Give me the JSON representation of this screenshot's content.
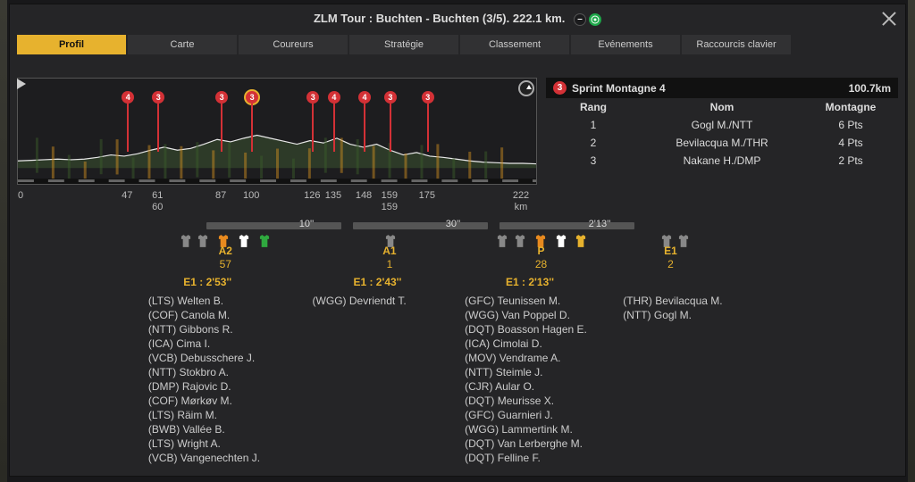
{
  "title": "ZLM Tour : Buchten - Buchten (3/5). 222.1 km.",
  "tabs": [
    "Profil",
    "Carte",
    "Coureurs",
    "Stratégie",
    "Classement",
    "Evénements",
    "Raccourcis clavier"
  ],
  "activeTab": 0,
  "colors": {
    "accent": "#e7b22e",
    "red": "#d33136",
    "green": "#1ea84a",
    "panel": "#252527",
    "seg": "#555555"
  },
  "profile": {
    "lengthKm": 222,
    "xStartLabel": "0",
    "xEndLabel": "222 km",
    "xTicks": [
      {
        "km": 47,
        "labels": [
          "47"
        ]
      },
      {
        "km": 60,
        "labels": [
          "61",
          "60"
        ]
      },
      {
        "km": 87,
        "labels": [
          "87"
        ]
      },
      {
        "km": 100,
        "labels": [
          "100"
        ]
      },
      {
        "km": 126,
        "labels": [
          "126"
        ]
      },
      {
        "km": 135,
        "labels": [
          "135"
        ]
      },
      {
        "km": 148,
        "labels": [
          "148"
        ]
      },
      {
        "km": 159,
        "labels": [
          "159",
          "159"
        ]
      },
      {
        "km": 175,
        "labels": [
          "175"
        ]
      }
    ],
    "markers": [
      {
        "km": 47,
        "label": "4",
        "type": "red"
      },
      {
        "km": 60,
        "label": "3",
        "type": "red"
      },
      {
        "km": 87,
        "label": "3",
        "type": "red"
      },
      {
        "km": 100,
        "label": "3",
        "type": "red",
        "highlight": true
      },
      {
        "km": 126,
        "label": "3",
        "type": "red"
      },
      {
        "km": 135,
        "label": "4",
        "type": "red"
      },
      {
        "km": 148,
        "label": "4",
        "type": "red"
      },
      {
        "km": 159,
        "label": "3",
        "type": "red"
      },
      {
        "km": 175,
        "label": "3",
        "type": "red"
      }
    ],
    "elevation": [
      0.12,
      0.13,
      0.14,
      0.15,
      0.14,
      0.15,
      0.18,
      0.22,
      0.2,
      0.24,
      0.3,
      0.35,
      0.3,
      0.33,
      0.4,
      0.48,
      0.44,
      0.5,
      0.55,
      0.5,
      0.45,
      0.4,
      0.46,
      0.42,
      0.5,
      0.4,
      0.35,
      0.4,
      0.3,
      0.22,
      0.26,
      0.2,
      0.18,
      0.15,
      0.12,
      0.1,
      0.09,
      0.08,
      0.08,
      0.07
    ]
  },
  "sprint": {
    "badge": "3",
    "name": "Sprint Montagne 4",
    "distance": "100.7km",
    "headers": {
      "rank": "Rang",
      "name": "Nom",
      "pts": "Montagne"
    },
    "rows": [
      {
        "rank": "1",
        "name": "Gogl M./NTT",
        "pts": "6 Pts"
      },
      {
        "rank": "2",
        "name": "Bevilacqua M./THR",
        "pts": "4 Pts"
      },
      {
        "rank": "3",
        "name": "Nakane H./DMP",
        "pts": "2 Pts"
      }
    ]
  },
  "segments": [
    {
      "leftPct": 8,
      "widthPct": 23,
      "label": "10''",
      "labelPct": 25
    },
    {
      "leftPct": 33,
      "widthPct": 23,
      "label": "30''",
      "labelPct": 50
    },
    {
      "leftPct": 58,
      "widthPct": 23,
      "label": "2'13''",
      "labelPct": 75
    }
  ],
  "jerseyRow": [
    {
      "pct": 3,
      "col": "#888888"
    },
    {
      "pct": 6,
      "col": "#888888"
    },
    {
      "pct": 9.5,
      "col": "#e88a1f"
    },
    {
      "pct": 13,
      "col": "#ffffff"
    },
    {
      "pct": 16.5,
      "col": "#2fa93f"
    },
    {
      "pct": 38,
      "col": "#888888"
    },
    {
      "pct": 57,
      "col": "#888888"
    },
    {
      "pct": 60,
      "col": "#888888"
    },
    {
      "pct": 63.5,
      "col": "#e88a1f"
    },
    {
      "pct": 67,
      "col": "#ffffff"
    },
    {
      "pct": 70.5,
      "col": "#e7b22e"
    },
    {
      "pct": 85,
      "col": "#888888"
    },
    {
      "pct": 88,
      "col": "#888888"
    }
  ],
  "groupHeads": [
    {
      "pct": 10,
      "l1": "A2",
      "l2": "57"
    },
    {
      "pct": 38,
      "l1": "A1",
      "l2": "1"
    },
    {
      "pct": 64,
      "l1": "P",
      "l2": "28"
    },
    {
      "pct": 86,
      "l1": "E1",
      "l2": "2"
    }
  ],
  "gaps": [
    {
      "pct": 4,
      "text": "E1 : 2'53''"
    },
    {
      "pct": 33,
      "text": "E1 : 2'43''"
    },
    {
      "pct": 59,
      "text": "E1 : 2'13''"
    }
  ],
  "riderCols": [
    {
      "pct": -2,
      "items": [
        "(LTS) Welten B.",
        "(COF) Canola M.",
        "(NTT) Gibbons R.",
        "(ICA) Cima I.",
        "(VCB) Debusschere J.",
        "(NTT) Stokbro A.",
        "(DMP) Rajovic D.",
        "(COF) Mørkøv M.",
        "(LTS) Räim M.",
        "(BWB) Vallée B.",
        "(LTS) Wright A.",
        "(VCB) Vangenechten J."
      ]
    },
    {
      "pct": 26,
      "items": [
        "(WGG) Devriendt T."
      ]
    },
    {
      "pct": 52,
      "items": [
        "(GFC) Teunissen M.",
        "(WGG) Van Poppel D.",
        "(DQT) Boasson Hagen E.",
        "(ICA) Cimolai D.",
        "(MOV) Vendrame A.",
        "(NTT) Steimle J.",
        "(CJR) Aular O.",
        "(DQT) Meurisse X.",
        "(GFC) Guarnieri J.",
        "(WGG) Lammertink M.",
        "(DQT) Van Lerberghe M.",
        "(DQT) Felline F."
      ]
    },
    {
      "pct": 79,
      "items": [
        "(THR) Bevilacqua M.",
        "(NTT) Gogl M."
      ]
    }
  ]
}
